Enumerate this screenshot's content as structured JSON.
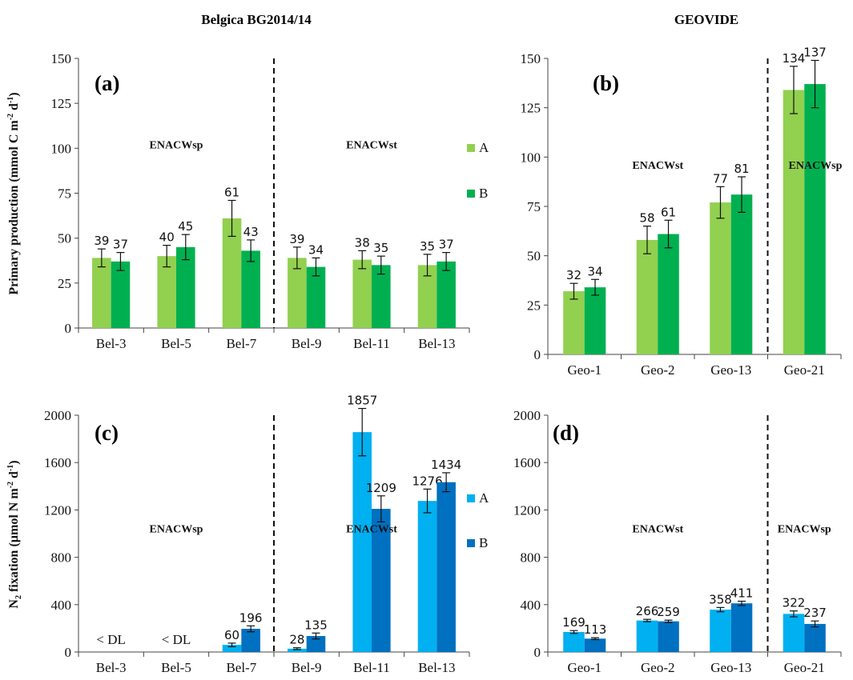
{
  "headings": {
    "left": "Belgica BG2014/14",
    "right": "GEOVIDE"
  },
  "colors": {
    "pp_A": "#92D050",
    "pp_B": "#00B050",
    "n2_A": "#00B0F0",
    "n2_B": "#0070C0"
  },
  "chart_data": [
    {
      "id": "a",
      "panel_label": "(a)",
      "type": "bar",
      "ylabel": "Primary production (mmol C m-2 d-1)",
      "ylim": [
        0,
        150
      ],
      "yticks": [
        0,
        25,
        50,
        75,
        100,
        125,
        150
      ],
      "categories": [
        "Bel-3",
        "Bel-5",
        "Bel-7",
        "Bel-9",
        "Bel-11",
        "Bel-13"
      ],
      "series": [
        {
          "name": "A",
          "values": [
            39,
            40,
            61,
            39,
            38,
            35
          ],
          "errors": [
            5,
            6,
            10,
            6,
            5,
            6
          ],
          "labels": [
            "39",
            "40",
            "61",
            "39",
            "38",
            "35"
          ]
        },
        {
          "name": "B",
          "values": [
            37,
            45,
            43,
            34,
            35,
            37
          ],
          "errors": [
            5,
            7,
            6,
            5,
            5,
            5
          ],
          "labels": [
            "37",
            "45",
            "43",
            "34",
            "35",
            "37"
          ]
        }
      ],
      "divider_after": 2,
      "regions": [
        {
          "text": "ENACWsp",
          "value": 100,
          "category_center": 1
        },
        {
          "text": "ENACWst",
          "value": 100,
          "category_center": 4
        }
      ],
      "legend": [
        "A",
        "B"
      ]
    },
    {
      "id": "b",
      "panel_label": "(b)",
      "type": "bar",
      "ylabel": "",
      "ylim": [
        0,
        150
      ],
      "yticks": [
        0,
        25,
        50,
        75,
        100,
        125,
        150
      ],
      "categories": [
        "Geo-1",
        "Geo-2",
        "Geo-13",
        "Geo-21"
      ],
      "series": [
        {
          "name": "A",
          "values": [
            32,
            58,
            77,
            134
          ],
          "errors": [
            4,
            7,
            8,
            12
          ],
          "labels": [
            "32",
            "58",
            "77",
            "134"
          ]
        },
        {
          "name": "B",
          "values": [
            34,
            61,
            81,
            137
          ],
          "errors": [
            4,
            7,
            9,
            12
          ],
          "labels": [
            "34",
            "61",
            "81",
            "137"
          ]
        }
      ],
      "divider_after": 2,
      "regions": [
        {
          "text": "ENACWst",
          "value": 94,
          "category_center": 1
        },
        {
          "text": "ENACWsp",
          "value": 94,
          "category_center": 3.15
        }
      ],
      "legend": []
    },
    {
      "id": "c",
      "panel_label": "(c)",
      "type": "bar",
      "ylabel": "N2 fixation (µmol N m-2 d-1)",
      "ylim": [
        0,
        2000
      ],
      "yticks": [
        0,
        400,
        800,
        1200,
        1600,
        2000
      ],
      "categories": [
        "Bel-3",
        "Bel-5",
        "Bel-7",
        "Bel-9",
        "Bel-11",
        "Bel-13"
      ],
      "series": [
        {
          "name": "A",
          "values": [
            0,
            0,
            60,
            28,
            1857,
            1276
          ],
          "errors": [
            0,
            0,
            15,
            8,
            200,
            100
          ],
          "labels": [
            "",
            "",
            "60",
            "28",
            "1857",
            "1276"
          ]
        },
        {
          "name": "B",
          "values": [
            0,
            0,
            196,
            135,
            1209,
            1434
          ],
          "errors": [
            0,
            0,
            25,
            25,
            110,
            80
          ],
          "labels": [
            "",
            "",
            "196",
            "135",
            "1209",
            "1434"
          ]
        }
      ],
      "below_detection": [
        {
          "category_index": 0,
          "text": "< DL"
        },
        {
          "category_index": 1,
          "text": "< DL"
        }
      ],
      "divider_after": 2,
      "regions": [
        {
          "text": "ENACWsp",
          "value": 1010,
          "category_center": 1
        },
        {
          "text": "ENACWst",
          "value": 1010,
          "category_center": 4
        }
      ],
      "legend": [
        "A",
        "B"
      ]
    },
    {
      "id": "d",
      "panel_label": "(d)",
      "type": "bar",
      "ylabel": "",
      "ylim": [
        0,
        2000
      ],
      "yticks": [
        0,
        400,
        800,
        1200,
        1600,
        2000
      ],
      "categories": [
        "Geo-1",
        "Geo-2",
        "Geo-13",
        "Geo-21"
      ],
      "series": [
        {
          "name": "A",
          "values": [
            169,
            266,
            358,
            322
          ],
          "errors": [
            12,
            10,
            18,
            25
          ],
          "labels": [
            "169",
            "266",
            "358",
            "322"
          ]
        },
        {
          "name": "B",
          "values": [
            113,
            259,
            411,
            237
          ],
          "errors": [
            8,
            10,
            18,
            25
          ],
          "labels": [
            "113",
            "259",
            "411",
            "237"
          ]
        }
      ],
      "divider_after": 2,
      "regions": [
        {
          "text": "ENACWst",
          "value": 1010,
          "category_center": 1
        },
        {
          "text": "ENACWsp",
          "value": 1010,
          "category_center": 3
        }
      ],
      "legend": []
    }
  ]
}
